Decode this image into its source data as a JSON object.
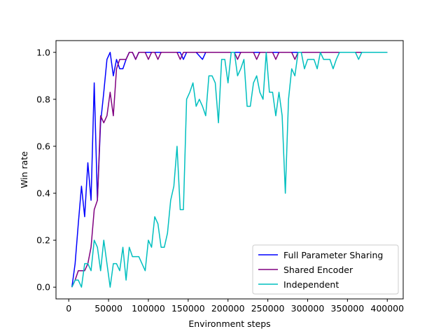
{
  "chart_data": {
    "type": "line",
    "title": "",
    "xlabel": "Environment steps",
    "ylabel": "Win rate",
    "xlim": [
      -16000,
      420000
    ],
    "ylim": [
      -0.05,
      1.05
    ],
    "xticks": [
      0,
      50000,
      100000,
      150000,
      200000,
      250000,
      300000,
      350000,
      400000
    ],
    "xtick_labels": [
      "0",
      "50000",
      "100000",
      "150000",
      "200000",
      "250000",
      "300000",
      "350000",
      "400000"
    ],
    "yticks": [
      0.0,
      0.2,
      0.4,
      0.6,
      0.8,
      1.0
    ],
    "ytick_labels": [
      "0.0",
      "0.2",
      "0.4",
      "0.6",
      "0.8",
      "1.0"
    ],
    "grid": false,
    "legend_position": "lower-right",
    "series": [
      {
        "name": "Full Parameter Sharing",
        "color": "#0000ff",
        "x": [
          4000,
          8000,
          12000,
          16000,
          20000,
          24000,
          28000,
          32000,
          36000,
          40000,
          44000,
          48000,
          52000,
          56000,
          60000,
          64000,
          68000,
          72000,
          76000,
          80000,
          84000,
          88000,
          92000,
          96000,
          100000,
          104000,
          108000,
          112000,
          116000,
          120000,
          140000,
          144000,
          148000,
          160000,
          168000,
          172000,
          200000,
          400000
        ],
        "y": [
          0.0,
          0.1,
          0.27,
          0.43,
          0.3,
          0.53,
          0.37,
          0.87,
          0.37,
          0.7,
          0.83,
          0.97,
          1.0,
          0.9,
          0.97,
          0.93,
          0.93,
          0.97,
          1.0,
          1.0,
          0.97,
          1.0,
          1.0,
          1.0,
          1.0,
          1.0,
          1.0,
          1.0,
          1.0,
          1.0,
          1.0,
          0.97,
          1.0,
          1.0,
          0.97,
          1.0,
          1.0,
          1.0
        ]
      },
      {
        "name": "Shared Encoder",
        "color": "#800080",
        "x": [
          4000,
          8000,
          12000,
          16000,
          20000,
          24000,
          28000,
          32000,
          36000,
          40000,
          44000,
          48000,
          52000,
          56000,
          60000,
          64000,
          68000,
          72000,
          76000,
          80000,
          84000,
          88000,
          92000,
          96000,
          100000,
          104000,
          108000,
          112000,
          116000,
          120000,
          136000,
          140000,
          144000,
          200000,
          208000,
          212000,
          216000,
          232000,
          236000,
          240000,
          256000,
          260000,
          264000,
          280000,
          284000,
          288000,
          400000
        ],
        "y": [
          0.0,
          0.03,
          0.07,
          0.07,
          0.07,
          0.1,
          0.17,
          0.33,
          0.37,
          0.73,
          0.7,
          0.73,
          0.83,
          0.73,
          0.93,
          0.97,
          0.97,
          0.97,
          1.0,
          1.0,
          0.97,
          1.0,
          1.0,
          1.0,
          0.97,
          1.0,
          1.0,
          0.97,
          1.0,
          1.0,
          1.0,
          0.97,
          1.0,
          1.0,
          1.0,
          0.97,
          1.0,
          1.0,
          0.97,
          1.0,
          1.0,
          0.97,
          1.0,
          1.0,
          0.97,
          1.0,
          1.0
        ]
      },
      {
        "name": "Independent",
        "color": "#00bfbf",
        "x": [
          4000,
          8000,
          12000,
          16000,
          20000,
          24000,
          28000,
          32000,
          36000,
          40000,
          44000,
          48000,
          52000,
          56000,
          60000,
          64000,
          68000,
          72000,
          76000,
          80000,
          84000,
          88000,
          92000,
          96000,
          100000,
          104000,
          108000,
          112000,
          116000,
          120000,
          124000,
          128000,
          132000,
          136000,
          140000,
          144000,
          148000,
          152000,
          156000,
          160000,
          164000,
          168000,
          172000,
          176000,
          180000,
          184000,
          188000,
          192000,
          196000,
          200000,
          204000,
          208000,
          212000,
          216000,
          220000,
          224000,
          228000,
          232000,
          236000,
          240000,
          244000,
          248000,
          252000,
          256000,
          260000,
          264000,
          268000,
          272000,
          276000,
          280000,
          284000,
          288000,
          292000,
          296000,
          300000,
          304000,
          308000,
          312000,
          316000,
          320000,
          324000,
          328000,
          332000,
          336000,
          340000,
          360000,
          364000,
          368000,
          372000,
          400000
        ],
        "y": [
          0.0,
          0.03,
          0.03,
          0.0,
          0.1,
          0.1,
          0.07,
          0.2,
          0.17,
          0.07,
          0.2,
          0.1,
          0.0,
          0.1,
          0.1,
          0.07,
          0.17,
          0.03,
          0.17,
          0.13,
          0.13,
          0.13,
          0.1,
          0.07,
          0.2,
          0.17,
          0.3,
          0.27,
          0.17,
          0.17,
          0.23,
          0.37,
          0.43,
          0.6,
          0.33,
          0.33,
          0.8,
          0.83,
          0.87,
          0.77,
          0.8,
          0.77,
          0.73,
          0.9,
          0.9,
          0.87,
          0.7,
          0.97,
          0.97,
          0.87,
          1.0,
          1.0,
          0.9,
          0.93,
          0.97,
          0.77,
          0.77,
          0.87,
          0.9,
          0.83,
          0.8,
          1.0,
          0.83,
          0.83,
          0.73,
          0.83,
          0.73,
          0.4,
          0.8,
          0.93,
          0.9,
          1.0,
          1.0,
          0.93,
          0.97,
          0.97,
          0.97,
          0.93,
          1.0,
          0.97,
          0.97,
          0.97,
          0.93,
          0.97,
          1.0,
          1.0,
          0.97,
          1.0,
          1.0,
          1.0
        ]
      }
    ]
  }
}
